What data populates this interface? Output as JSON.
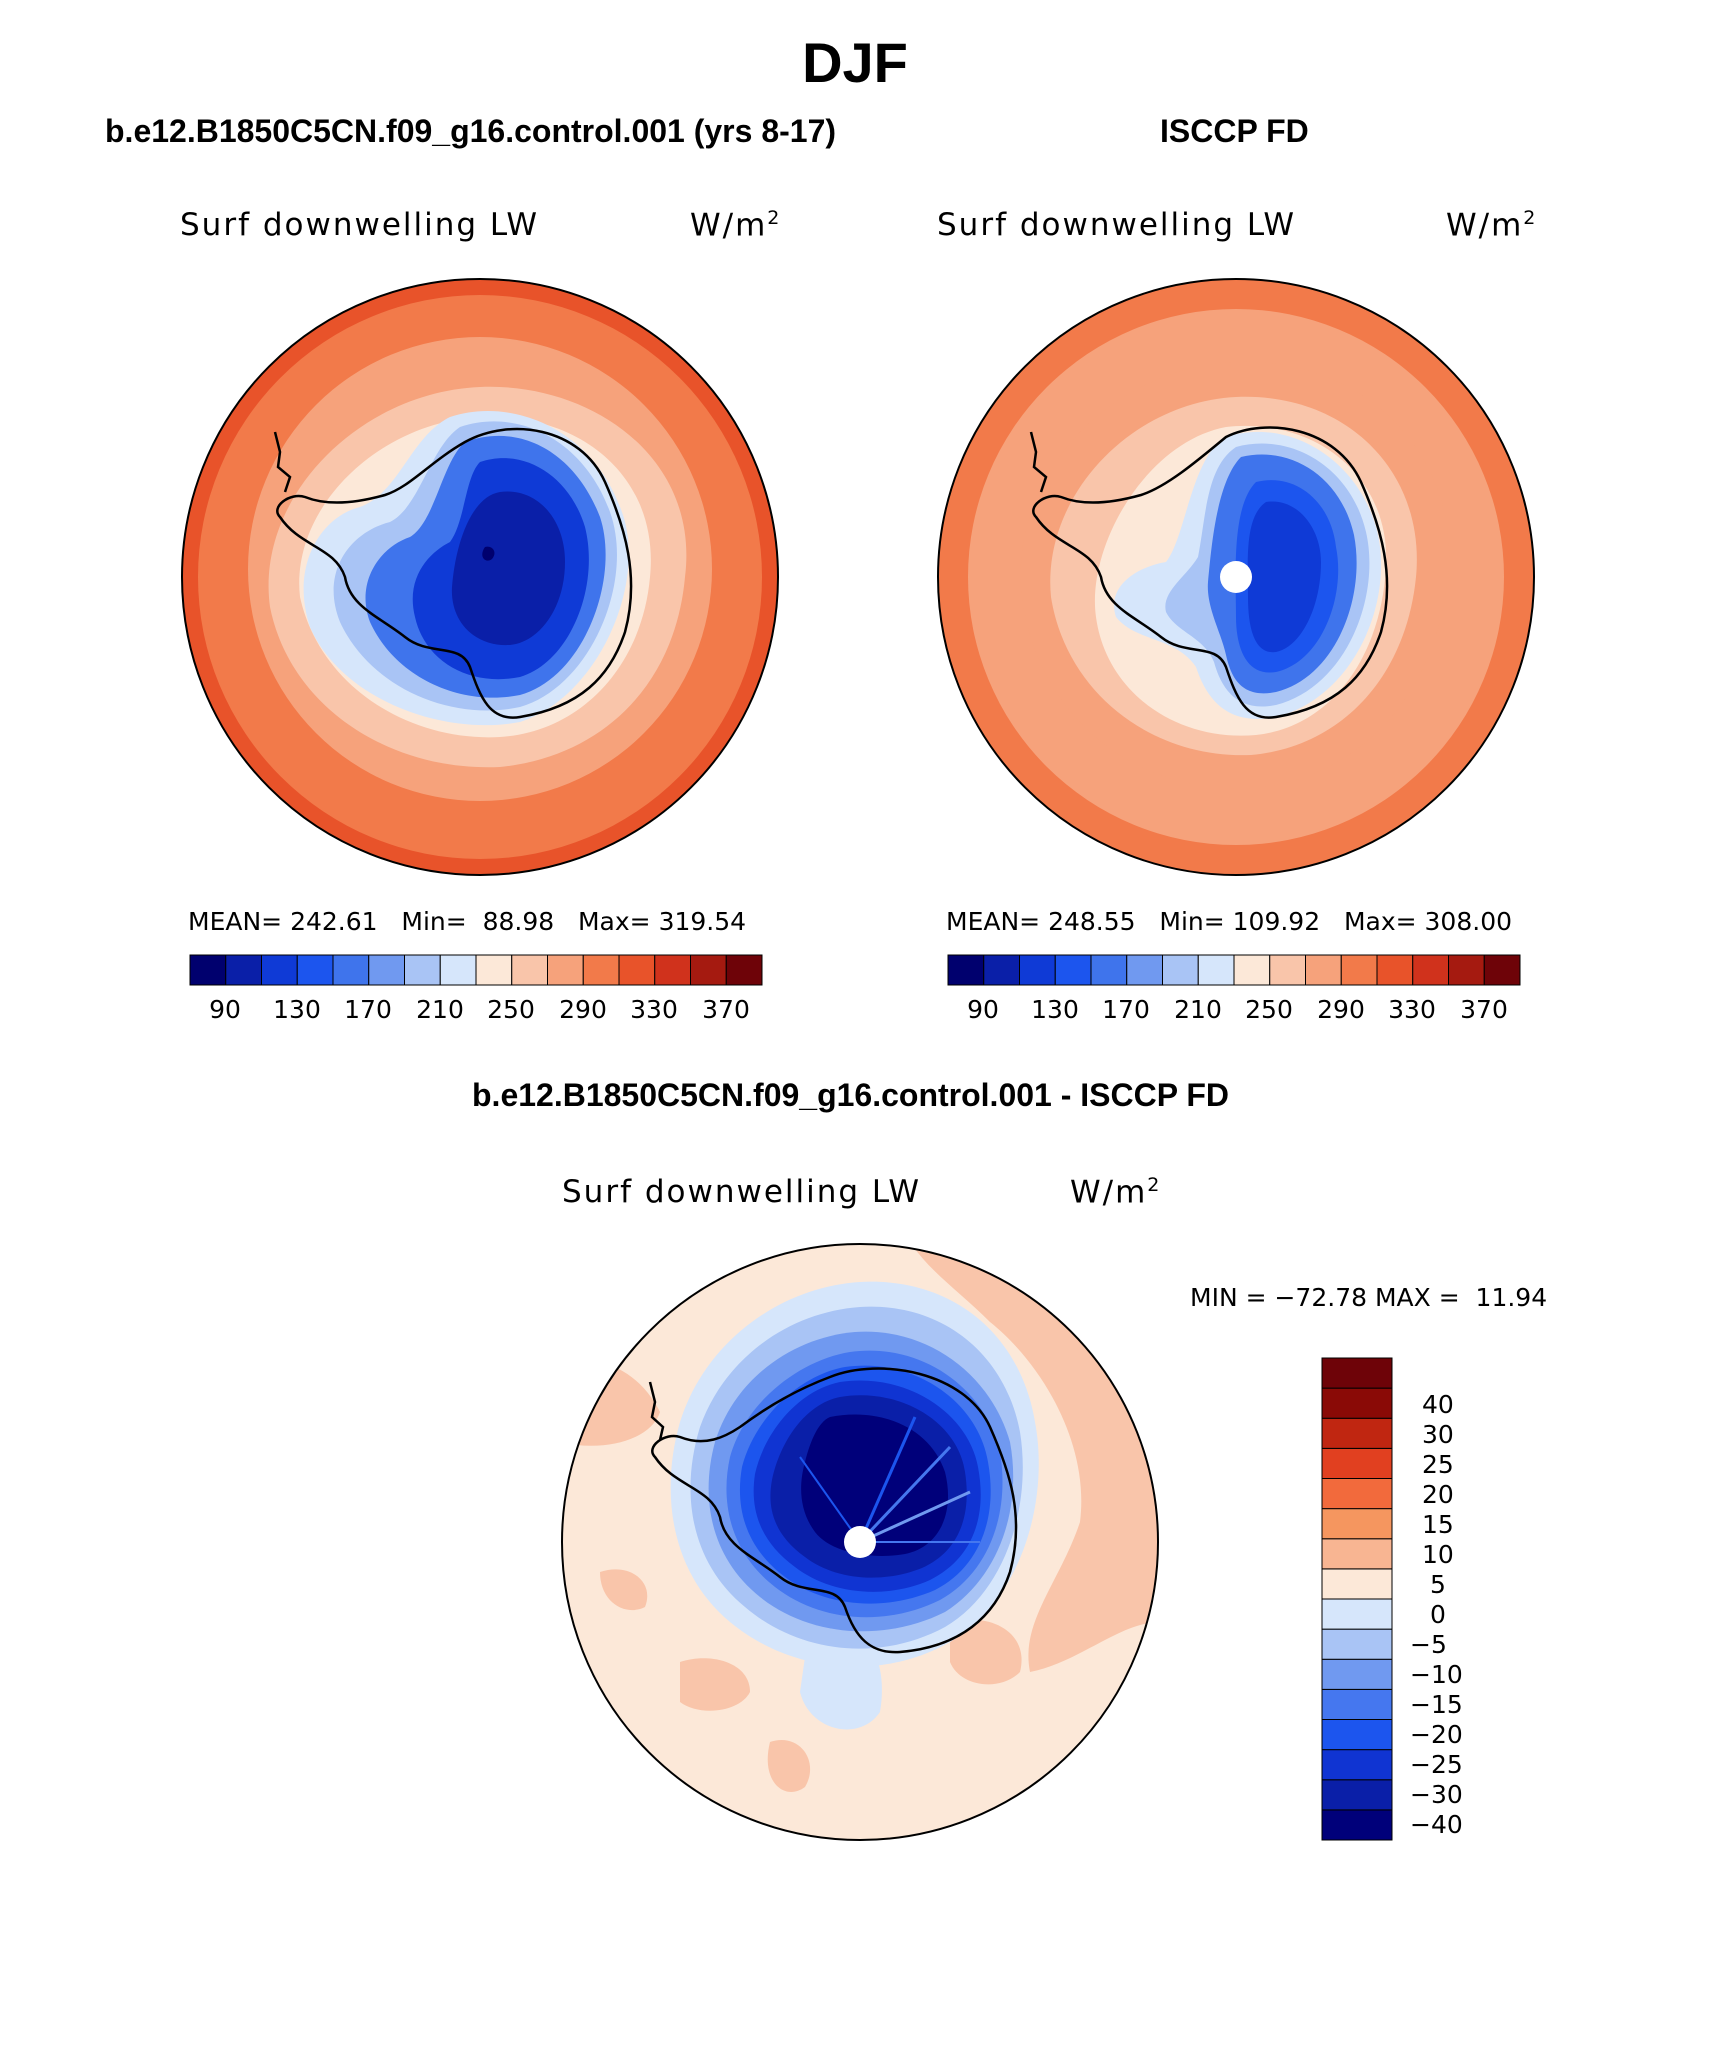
{
  "title": "DJF",
  "panels": [
    {
      "title": "b.e12.B1850C5CN.f09_g16.control.001 (yrs 8-17)",
      "variable": "Surf downwelling LW",
      "units": "W/m",
      "units_sup": "2",
      "stats": "MEAN= 242.61   Min=  88.98   Max= 319.54"
    },
    {
      "title": "ISCCP FD",
      "variable": "Surf downwelling LW",
      "units": "W/m",
      "units_sup": "2",
      "stats": "MEAN= 248.55   Min= 109.92   Max= 308.00"
    },
    {
      "title": "b.e12.B1850C5CN.f09_g16.control.001 - ISCCP FD",
      "variable": "Surf downwelling LW",
      "units": "W/m",
      "units_sup": "2",
      "stats": "MIN = −72.78 MAX =  11.94"
    }
  ],
  "abs_colorbar": {
    "colors": [
      "#00006e",
      "#0a1fa8",
      "#0f3ad6",
      "#1c55ee",
      "#3f74ec",
      "#7099f0",
      "#a9c4f5",
      "#d6e6fb",
      "#fce8d8",
      "#f9c5aa",
      "#f6a27b",
      "#f27a4a",
      "#e8532a",
      "#d0321c",
      "#a51a10",
      "#6e0308"
    ],
    "labels": [
      "90",
      "130",
      "170",
      "210",
      "250",
      "290",
      "330",
      "370"
    ]
  },
  "diff_colorbar": {
    "colors": [
      "#00007a",
      "#0a1fa8",
      "#1034d2",
      "#1c55ee",
      "#4577ef",
      "#7099f0",
      "#a9c4f5",
      "#d6e6fb",
      "#fce8d8",
      "#f8b592",
      "#f5965f",
      "#f26a3c",
      "#e14020",
      "#c02611",
      "#8a0a06"
    ],
    "labels": [
      "−40",
      "−30",
      "−25",
      "−20",
      "−15",
      "−10",
      "−5",
      "0",
      "5",
      "10",
      "15",
      "20",
      "25",
      "30",
      "40"
    ]
  },
  "chart_data": [
    {
      "type": "heatmap",
      "title": "b.e12.B1850C5CN.f09_g16.control.001 (yrs 8-17)",
      "variable": "Surf downwelling LW",
      "units": "W/m2",
      "mean": 242.61,
      "min": 88.98,
      "max": 319.54,
      "levels": [
        90,
        110,
        130,
        150,
        170,
        190,
        210,
        230,
        250,
        270,
        290,
        310,
        330,
        350,
        370
      ],
      "projection": "south polar stereographic"
    },
    {
      "type": "heatmap",
      "title": "ISCCP FD",
      "variable": "Surf downwelling LW",
      "units": "W/m2",
      "mean": 248.55,
      "min": 109.92,
      "max": 308.0,
      "levels": [
        90,
        110,
        130,
        150,
        170,
        190,
        210,
        230,
        250,
        270,
        290,
        310,
        330,
        350,
        370
      ],
      "projection": "south polar stereographic"
    },
    {
      "type": "heatmap",
      "title": "b.e12.B1850C5CN.f09_g16.control.001 - ISCCP FD",
      "variable": "Surf downwelling LW",
      "units": "W/m2",
      "min": -72.78,
      "max": 11.94,
      "levels": [
        -40,
        -30,
        -25,
        -20,
        -15,
        -10,
        -5,
        0,
        5,
        10,
        15,
        20,
        25,
        30,
        40
      ],
      "projection": "south polar stereographic"
    }
  ]
}
